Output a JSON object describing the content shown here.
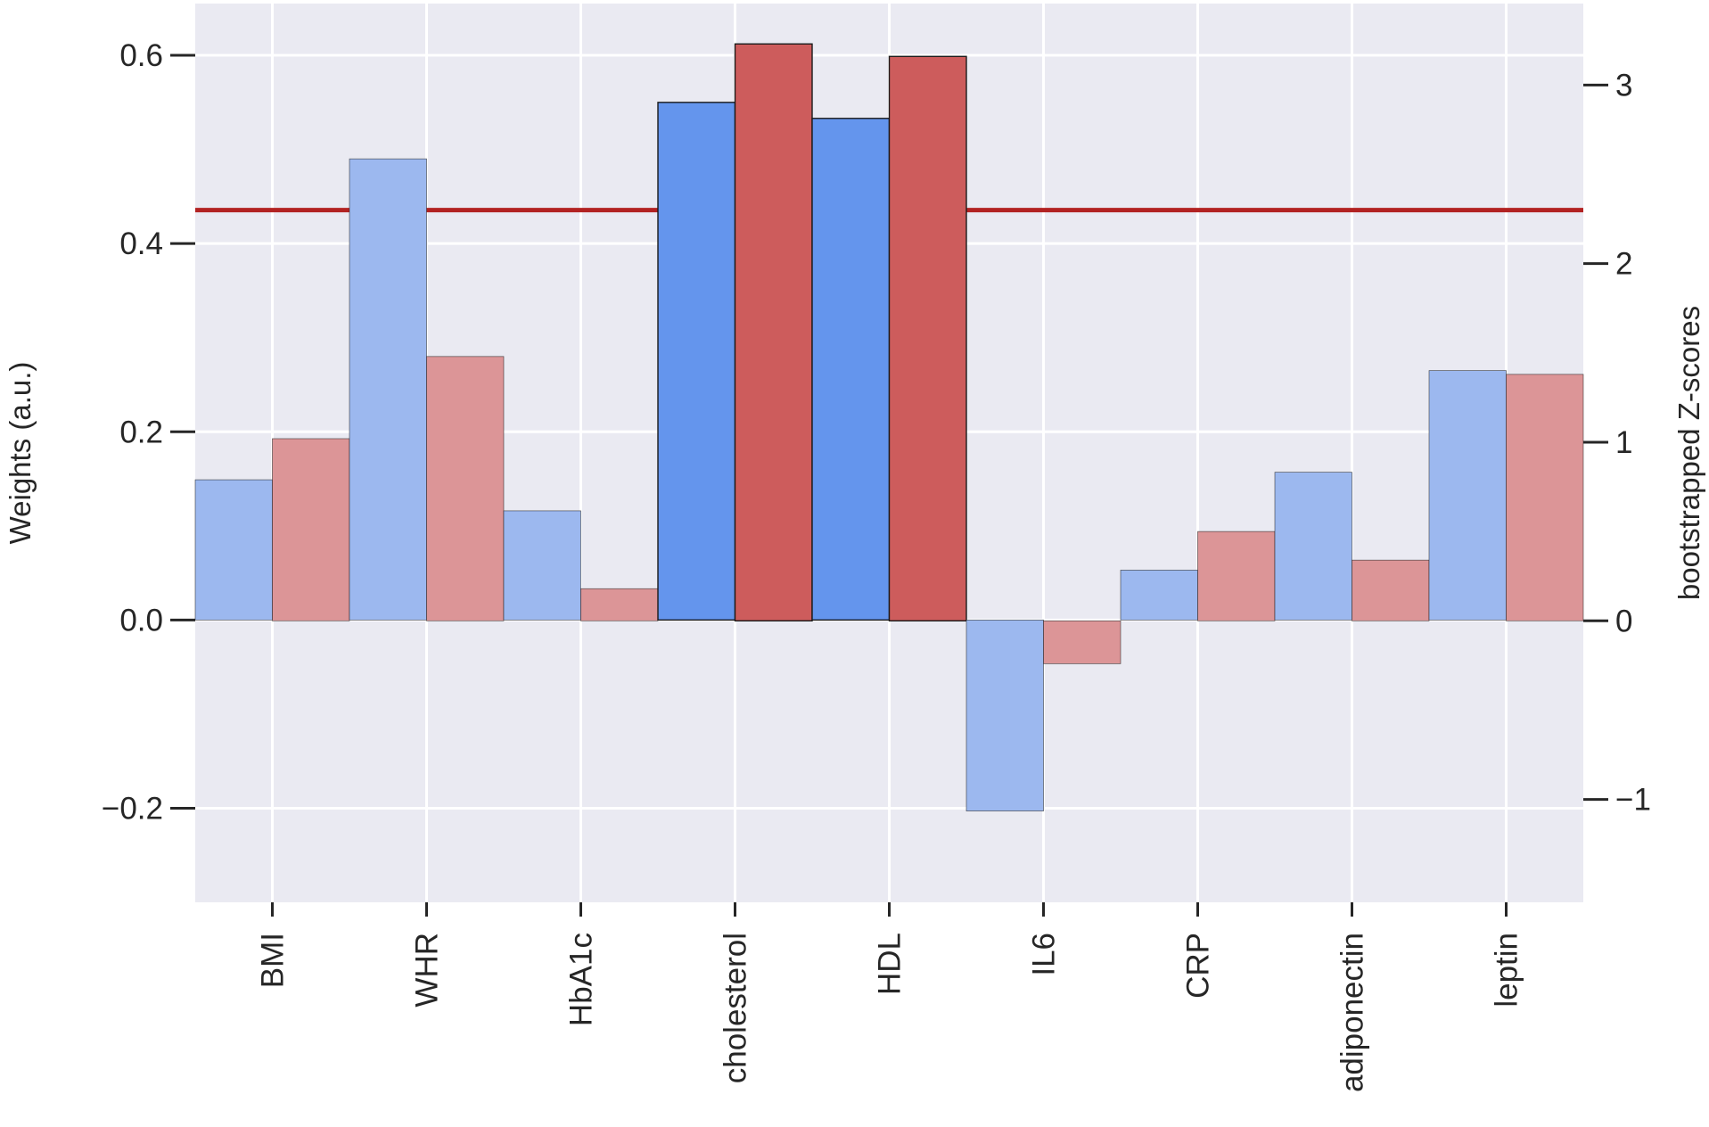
{
  "chart_data": {
    "type": "bar",
    "categories": [
      "BMI",
      "WHR",
      "HbA1c",
      "cholesterol",
      "HDL",
      "IL6",
      "CRP",
      "adiponectin",
      "leptin"
    ],
    "ylabel": "Weights (a.u.)",
    "y2label": "bootstrapped Z-scores",
    "ylim": [
      -0.3,
      0.655
    ],
    "y2lim": [
      -1.576,
      3.456
    ],
    "yticks": [
      -0.2,
      0.0,
      0.2,
      0.4,
      0.6
    ],
    "yticklabels": [
      "−0.2",
      "0.0",
      "0.2",
      "0.4",
      "0.6"
    ],
    "y2ticks": [
      -1,
      0,
      1,
      2,
      3
    ],
    "y2ticklabels": [
      "−1",
      "0",
      "1",
      "2",
      "3"
    ],
    "grid": true,
    "series": [
      {
        "axis": "left",
        "values": [
          0.149,
          0.49,
          0.116,
          0.55,
          0.533,
          -0.203,
          0.053,
          0.157,
          0.265
        ],
        "color": "#6495ed",
        "muted_color": "#9cb8ef"
      },
      {
        "axis": "right",
        "values": [
          1.02,
          1.48,
          0.18,
          3.23,
          3.16,
          -0.24,
          0.5,
          0.34,
          1.38
        ],
        "color": "#cd5c5c",
        "muted_color": "#dc9597"
      }
    ],
    "highlighted": [
      "cholesterol",
      "HDL"
    ],
    "threshold": {
      "axis": "right",
      "value": 2.3,
      "color": "#b22222"
    },
    "background_color": "#eaeaf2",
    "grid_color": "#ffffff"
  }
}
